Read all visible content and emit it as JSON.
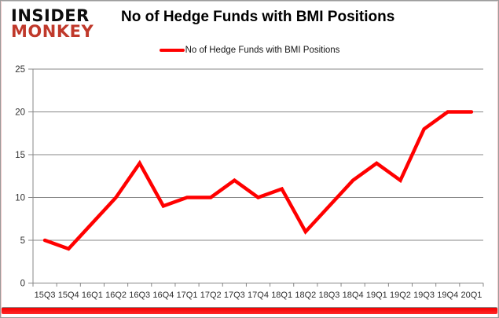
{
  "brand": {
    "line1": "INSIDER",
    "line2": "MONKEY",
    "line1_color": "#0d0d0d",
    "line2_color": "#c0392b"
  },
  "header": {
    "title": "No of Hedge Funds with BMI Positions"
  },
  "legend": {
    "label": "No of Hedge Funds with BMI Positions",
    "line_color": "#ff0000"
  },
  "chart_data": {
    "type": "line",
    "title": "No of Hedge Funds with BMI Positions",
    "categories": [
      "15Q3",
      "15Q4",
      "16Q1",
      "16Q2",
      "16Q3",
      "16Q4",
      "17Q1",
      "17Q2",
      "17Q3",
      "17Q4",
      "18Q1",
      "18Q2",
      "18Q3",
      "18Q4",
      "19Q1",
      "19Q2",
      "19Q3",
      "19Q4",
      "20Q1"
    ],
    "series": [
      {
        "name": "No of Hedge Funds with BMI Positions",
        "color": "#ff0000",
        "values": [
          5,
          4,
          7,
          10,
          14,
          9,
          10,
          10,
          12,
          10,
          11,
          6,
          9,
          12,
          14,
          12,
          18,
          20,
          20
        ]
      }
    ],
    "xlabel": "",
    "ylabel": "",
    "ylim": [
      0,
      25
    ],
    "yticks": [
      0,
      5,
      10,
      15,
      20,
      25
    ],
    "grid": true,
    "legend_position": "top-center",
    "gridline_color": "#878787",
    "axis_color": "#878787",
    "tick_label_color": "#303030"
  },
  "footer": {
    "accent_bar_color": "#f40000"
  }
}
